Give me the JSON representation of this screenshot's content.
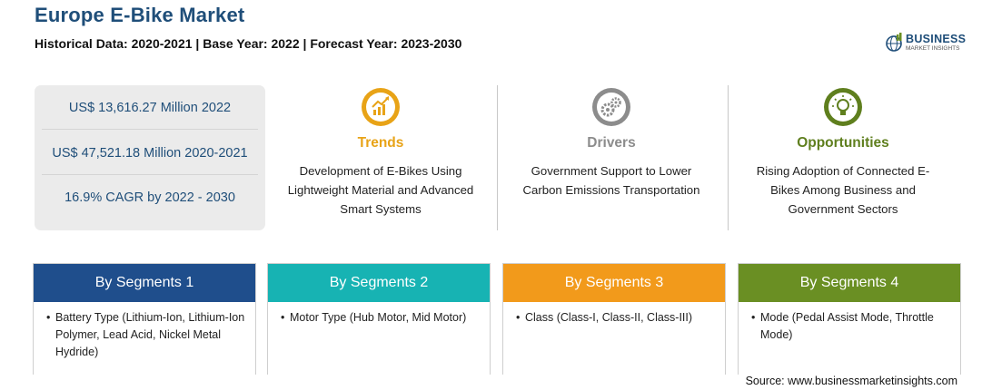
{
  "header": {
    "title": "Europe E-Bike Market",
    "subtitle": "Historical Data: 2020-2021 | Base Year: 2022 | Forecast Year: 2023-2030"
  },
  "logo": {
    "main": "BUSINESS",
    "sub": "MARKET INSIGHTS"
  },
  "stats": [
    "US$ 13,616.27 Million 2022",
    "US$ 47,521.18 Million 2020-2021",
    "16.9% CAGR by 2022 - 2030"
  ],
  "columns": [
    {
      "heading": "Trends",
      "icon": "trend-chart-icon",
      "color": "#e8a317",
      "lines": [
        "Development of E-Bikes Using",
        "Lightweight Material and Advanced",
        "Smart Systems"
      ]
    },
    {
      "heading": "Drivers",
      "icon": "gears-icon",
      "color": "#8c8c8c",
      "lines": [
        "Government Support to Lower",
        "Carbon Emissions Transportation"
      ]
    },
    {
      "heading": "Opportunities",
      "icon": "lightbulb-icon",
      "color": "#5f7f1e",
      "lines": [
        "Rising Adoption of Connected E-",
        "Bikes Among Business and",
        "Government Sectors"
      ]
    }
  ],
  "segments": [
    {
      "title": "By Segments 1",
      "color": "#1f4e8c",
      "items": [
        "Battery Type (Lithium-Ion, Lithium-Ion Polymer, Lead Acid, Nickel Metal Hydride)"
      ]
    },
    {
      "title": "By Segments 2",
      "color": "#17b3b3",
      "items": [
        "Motor Type (Hub Motor, Mid Motor)"
      ]
    },
    {
      "title": "By Segments 3",
      "color": "#f29a1b",
      "items": [
        "Class (Class-I, Class-II, Class-III)"
      ]
    },
    {
      "title": "By Segments 4",
      "color": "#6a8f23",
      "items": [
        "Mode (Pedal Assist Mode, Throttle Mode)"
      ]
    }
  ],
  "source": "Source: www.businessmarketinsights.com"
}
